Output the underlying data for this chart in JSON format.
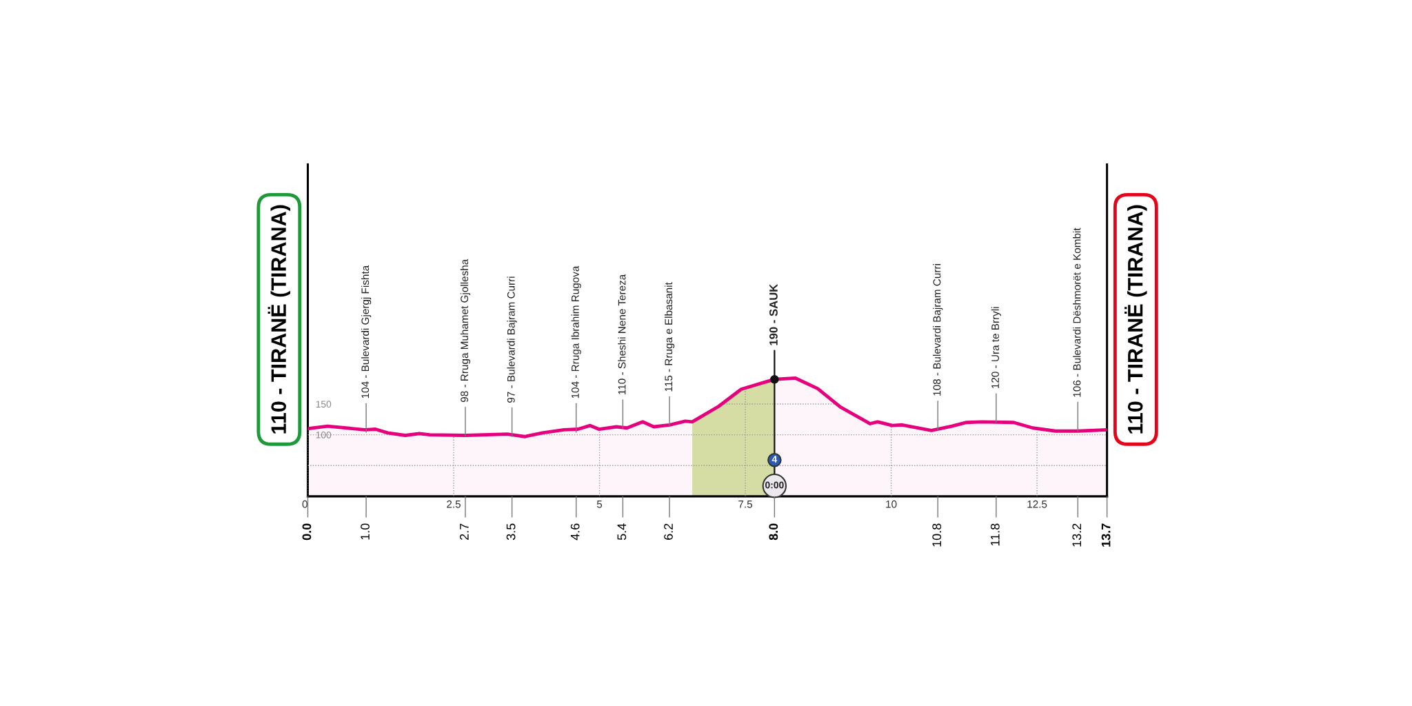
{
  "chart_data": {
    "type": "area",
    "x": [
      0,
      0.34,
      0.98,
      1.16,
      1.37,
      1.67,
      1.91,
      2.09,
      2.7,
      3.42,
      3.72,
      4.02,
      4.39,
      4.63,
      4.84,
      4.99,
      5.29,
      5.47,
      5.74,
      5.93,
      6.2,
      6.47,
      6.59,
      7.04,
      7.43,
      7.89,
      8.0,
      8.36,
      8.74,
      9.13,
      9.64,
      9.77,
      10.02,
      10.19,
      10.69,
      11.04,
      11.29,
      11.55,
      12.1,
      12.43,
      12.82,
      13.2,
      13.7
    ],
    "series": [
      {
        "color": "#e5007e",
        "values": [
          110,
          114,
          108,
          109,
          103,
          99,
          102,
          100,
          99,
          101,
          97,
          103,
          108,
          109,
          115,
          109,
          113,
          111,
          121,
          113,
          116,
          122,
          121,
          146,
          174,
          187,
          190,
          192,
          175,
          145,
          118,
          121,
          115,
          116,
          107,
          114,
          120,
          121,
          120,
          111,
          106,
          106,
          108
        ]
      }
    ],
    "xlim": [
      0,
      13.7
    ],
    "ylim": [
      0,
      539
    ],
    "xticks": [
      0,
      2.5,
      5,
      7.5,
      10,
      12.5
    ],
    "yticks": [
      {
        "value": 50,
        "label": null
      },
      100,
      150
    ],
    "x2lim": [
      0,
      13.7
    ],
    "x2ticks": [
      {
        "value": 0.0,
        "label": "0.0"
      },
      {
        "value": 1.0,
        "label": "1.0"
      },
      {
        "value": 2.7,
        "label": "2.7"
      },
      {
        "value": 3.5,
        "label": "3.5"
      },
      {
        "value": 4.6,
        "label": "4.6"
      },
      {
        "value": 5.4,
        "label": "5.4"
      },
      {
        "value": 6.2,
        "label": "6.2"
      },
      {
        "value": 8.0,
        "label": "8.0"
      },
      {
        "value": 10.8,
        "label": "10.8"
      },
      {
        "value": 11.8,
        "label": "11.8"
      },
      {
        "value": 13.2,
        "label": "13.2"
      },
      {
        "value": 13.7,
        "label": "13.7"
      }
    ],
    "bands": [
      {
        "axis": "x",
        "from": 6.59,
        "to": 8.0,
        "color": "#d5e6a6"
      }
    ],
    "grid": true,
    "line_style": "dotted",
    "annotations": [
      {
        "text": "110 - TIRANË (TIRANA)",
        "x": 0,
        "y": 110
      },
      {
        "text": "104 - Bulevardi Gjergj Fishta",
        "x": 1.0,
        "y": 104
      },
      {
        "text": "98 - Rruga Muhamet Gjollesha",
        "x": 2.7,
        "y": 98
      },
      {
        "text": "97 - Bulevardi Bajram Curri",
        "x": 3.5,
        "y": 97
      },
      {
        "text": "104 - Rruga Ibrahim Rugova",
        "x": 4.6,
        "y": 104
      },
      {
        "text": "110 - Sheshi Nene Tereza",
        "x": 5.4,
        "y": 110
      },
      {
        "text": "115 - Rruga e Elbasanit",
        "x": 6.2,
        "y": 115
      },
      {
        "text": "190 - SAUK",
        "x": 8.0,
        "y": 190
      },
      {
        "text": "4",
        "x": 8.0,
        "y": 59
      },
      {
        "text": "0:00",
        "x": 8.0,
        "y": 17
      },
      {
        "text": "108 - Bulevardi Bajram Curri",
        "x": 10.8,
        "y": 108
      },
      {
        "text": "120 - Ura te Brryli",
        "x": 11.8,
        "y": 120
      },
      {
        "text": "106 - Bulevardi Dëshmorët e Kombit",
        "x": 13.2,
        "y": 106
      },
      {
        "text": "110 - TIRANË (TIRANA)",
        "x": 13.7,
        "y": 110
      }
    ]
  }
}
